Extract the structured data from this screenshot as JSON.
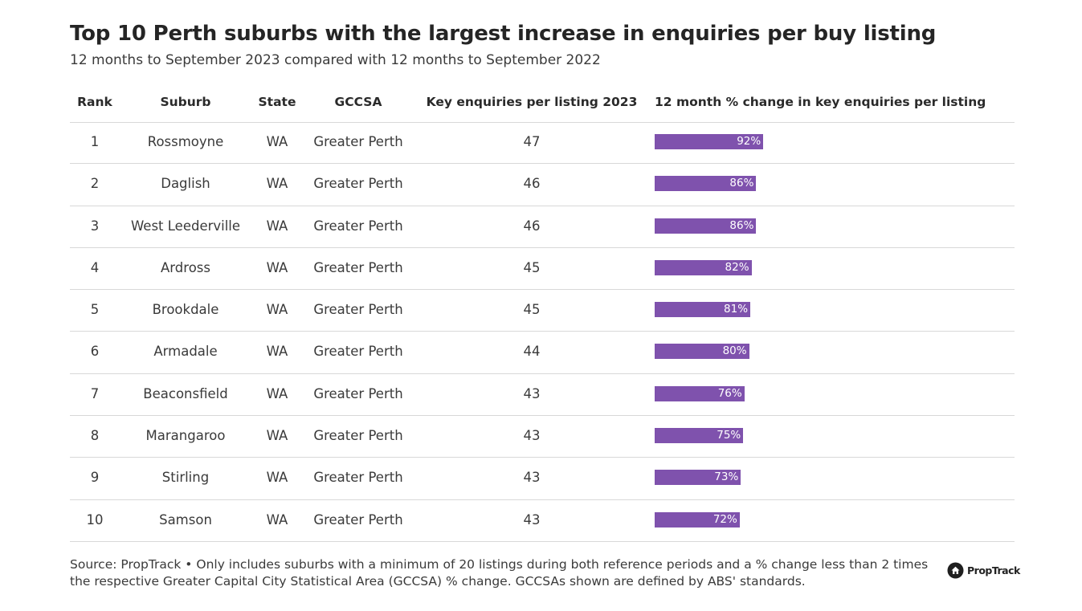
{
  "title": "Top 10 Perth suburbs with the largest increase in enquiries per buy listing",
  "subtitle": "12 months to September 2023 compared with 12 months to September 2022",
  "columns": {
    "rank": "Rank",
    "suburb": "Suburb",
    "state": "State",
    "gccsa": "GCCSA",
    "enquiries": "Key enquiries per listing 2023",
    "change": "12 month % change in key enquiries per listing"
  },
  "source": "Source: PropTrack • Only includes suburbs with a minimum of 20 listings during both reference periods and a % change less than 2 times the respective Greater Capital City Statistical Area (GCCSA) % change. GCCSAs shown are defined by ABS' standards.",
  "logo_text": "PropTrack",
  "colors": {
    "bar": "#7f52ad",
    "logo": "#1f1f1f"
  },
  "chart_data": {
    "type": "table",
    "rows": [
      {
        "rank": "1",
        "suburb": "Rossmoyne",
        "state": "WA",
        "gccsa": "Greater Perth",
        "enquiries": "47",
        "change": 92,
        "change_label": "92%"
      },
      {
        "rank": "2",
        "suburb": "Daglish",
        "state": "WA",
        "gccsa": "Greater Perth",
        "enquiries": "46",
        "change": 86,
        "change_label": "86%"
      },
      {
        "rank": "3",
        "suburb": "West Leederville",
        "state": "WA",
        "gccsa": "Greater Perth",
        "enquiries": "46",
        "change": 86,
        "change_label": "86%"
      },
      {
        "rank": "4",
        "suburb": "Ardross",
        "state": "WA",
        "gccsa": "Greater Perth",
        "enquiries": "45",
        "change": 82,
        "change_label": "82%"
      },
      {
        "rank": "5",
        "suburb": "Brookdale",
        "state": "WA",
        "gccsa": "Greater Perth",
        "enquiries": "45",
        "change": 81,
        "change_label": "81%"
      },
      {
        "rank": "6",
        "suburb": "Armadale",
        "state": "WA",
        "gccsa": "Greater Perth",
        "enquiries": "44",
        "change": 80,
        "change_label": "80%"
      },
      {
        "rank": "7",
        "suburb": "Beaconsfield",
        "state": "WA",
        "gccsa": "Greater Perth",
        "enquiries": "43",
        "change": 76,
        "change_label": "76%"
      },
      {
        "rank": "8",
        "suburb": "Marangaroo",
        "state": "WA",
        "gccsa": "Greater Perth",
        "enquiries": "43",
        "change": 75,
        "change_label": "75%"
      },
      {
        "rank": "9",
        "suburb": "Stirling",
        "state": "WA",
        "gccsa": "Greater Perth",
        "enquiries": "43",
        "change": 73,
        "change_label": "73%"
      },
      {
        "rank": "10",
        "suburb": "Samson",
        "state": "WA",
        "gccsa": "Greater Perth",
        "enquiries": "43",
        "change": 72,
        "change_label": "72%"
      }
    ]
  }
}
